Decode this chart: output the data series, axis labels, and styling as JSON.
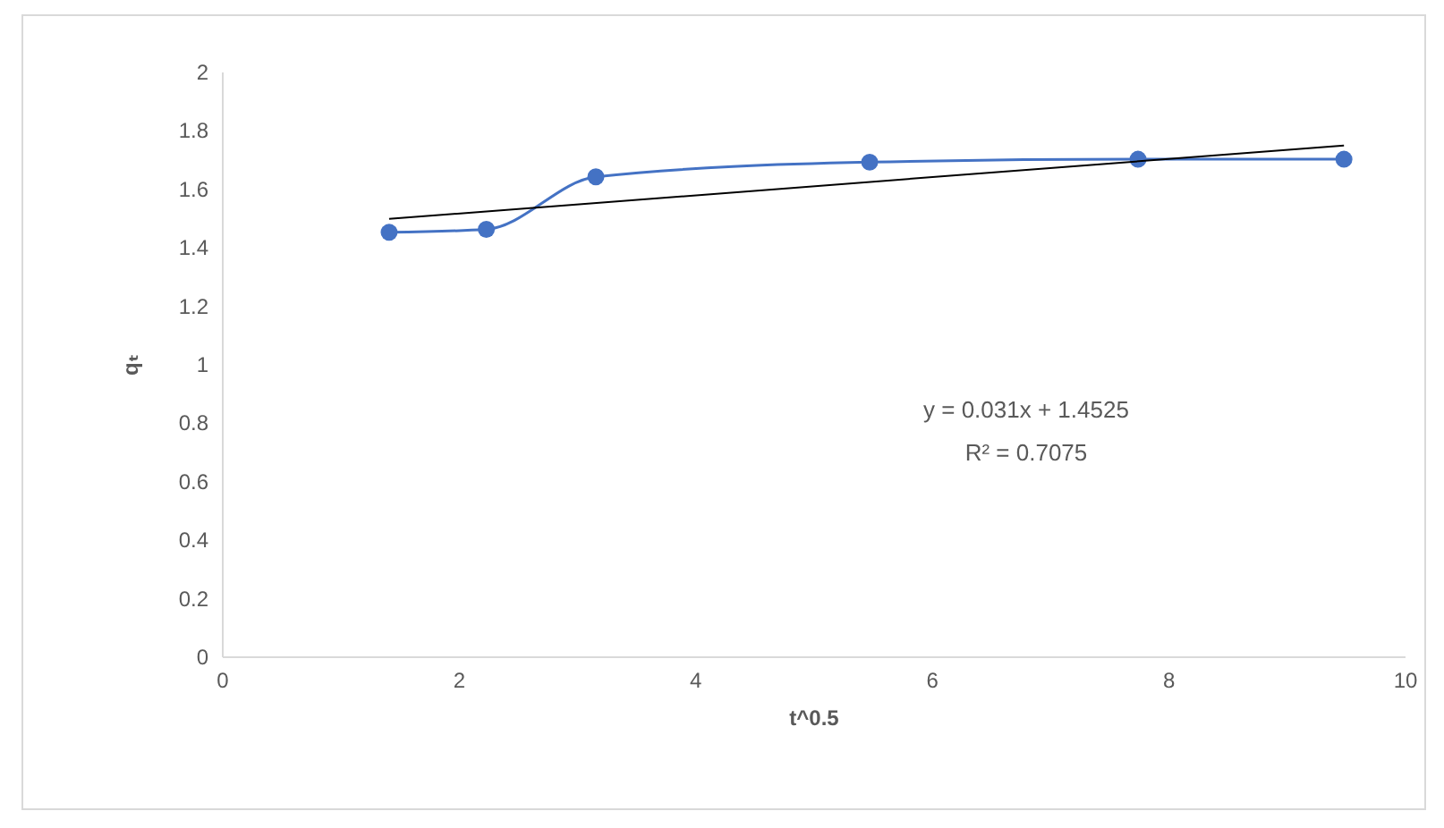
{
  "chart_data": {
    "type": "line",
    "xlabel": "t^0.5",
    "ylabel": "qₜ",
    "xlim": [
      0,
      10
    ],
    "xticks": [
      0,
      2,
      4,
      6,
      8,
      10
    ],
    "ylim": [
      0,
      2
    ],
    "yticks": [
      0,
      0.2,
      0.4,
      0.6,
      0.8,
      1,
      1.2,
      1.4,
      1.6,
      1.8,
      2
    ],
    "grid": false,
    "marker": "circle",
    "series": [
      {
        "color": "#4472c4",
        "x": [
          1.414,
          2.236,
          3.162,
          5.477,
          7.746,
          9.487
        ],
        "values": [
          1.45,
          1.46,
          1.64,
          1.69,
          1.7,
          1.7
        ]
      },
      {
        "color": "#000000",
        "marker": "none",
        "x": [
          1.414,
          9.487
        ],
        "values": [
          1.496,
          1.747
        ]
      }
    ],
    "annotations": [
      "y = 0.031x + 1.4525",
      "R² = 0.7075"
    ]
  }
}
